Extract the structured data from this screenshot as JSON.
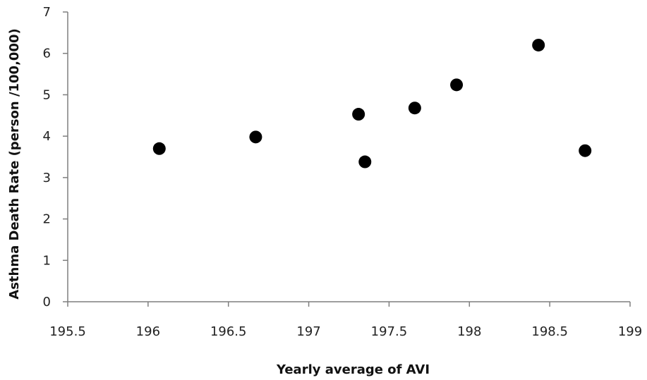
{
  "chart_data": {
    "type": "scatter",
    "title": "",
    "xlabel": "Yearly average of AVI",
    "ylabel": "Asthma Death Rate (person /100,000)",
    "xlim": [
      195.5,
      199
    ],
    "ylim": [
      0,
      7
    ],
    "x_ticks": [
      195.5,
      196,
      196.5,
      197,
      197.5,
      198,
      198.5,
      199
    ],
    "y_ticks": [
      0,
      1,
      2,
      3,
      4,
      5,
      6,
      7
    ],
    "grid": false,
    "legend": "none",
    "marker_color": "#000000",
    "series": [
      {
        "points": [
          {
            "x": 196.07,
            "y": 3.7
          },
          {
            "x": 196.67,
            "y": 3.98
          },
          {
            "x": 197.31,
            "y": 4.53
          },
          {
            "x": 197.35,
            "y": 3.38
          },
          {
            "x": 197.66,
            "y": 4.68
          },
          {
            "x": 197.92,
            "y": 5.24
          },
          {
            "x": 198.43,
            "y": 6.2
          },
          {
            "x": 198.72,
            "y": 3.65
          }
        ]
      }
    ]
  }
}
